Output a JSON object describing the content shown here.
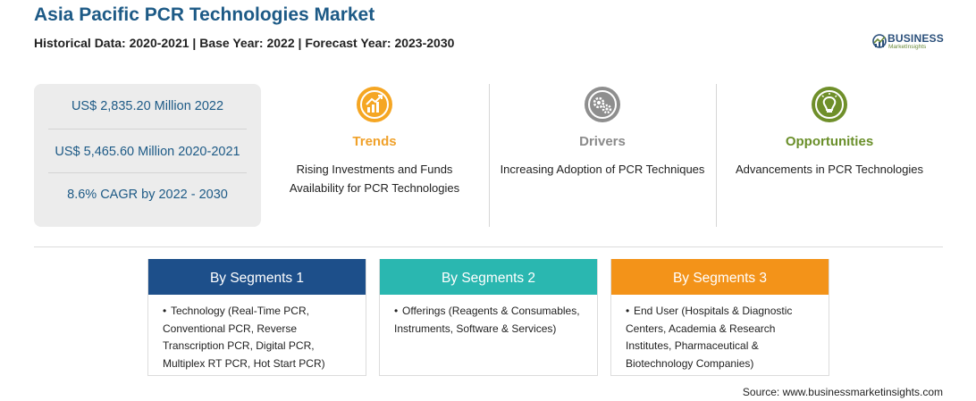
{
  "header": {
    "title": "Asia Pacific PCR Technologies Market",
    "subtitle": "Historical Data: 2020-2021 | Base Year: 2022 | Forecast Year: 2023-2030"
  },
  "logo": {
    "word": "BUSINESS",
    "tagline": "MarketInsights"
  },
  "stats": [
    "US$ 2,835.20 Million 2022",
    "US$ 5,465.60 Million 2020-2021",
    "8.6% CAGR by 2022 - 2030"
  ],
  "columns": {
    "trends": {
      "icon": "chart-growth-icon",
      "heading": "Trends",
      "text": "Rising Investments and Funds Availability for PCR Technologies",
      "color": "#f0a12a"
    },
    "drivers": {
      "icon": "gears-icon",
      "heading": "Drivers",
      "text": "Increasing Adoption of PCR Techniques",
      "color": "#8a8a8a"
    },
    "opportunities": {
      "icon": "lightbulb-icon",
      "heading": "Opportunities",
      "text": "Advancements in PCR Technologies",
      "color": "#6a8f2a"
    }
  },
  "segments": [
    {
      "title": "By Segments 1",
      "text": "Technology (Real-Time PCR, Conventional PCR, Reverse Transcription PCR, Digital PCR, Multiplex RT PCR, Hot Start PCR)",
      "color": "#1d4f8a"
    },
    {
      "title": "By Segments 2",
      "text": "Offerings (Reagents & Consumables, Instruments, Software & Services)",
      "color": "#2ab7b0"
    },
    {
      "title": "By Segments 3",
      "text": "End User (Hospitals & Diagnostic Centers, Academia & Research Institutes, Pharmaceutical & Biotechnology Companies)",
      "color": "#f39319"
    }
  ],
  "source": "Source: www.businessmarketinsights.com"
}
